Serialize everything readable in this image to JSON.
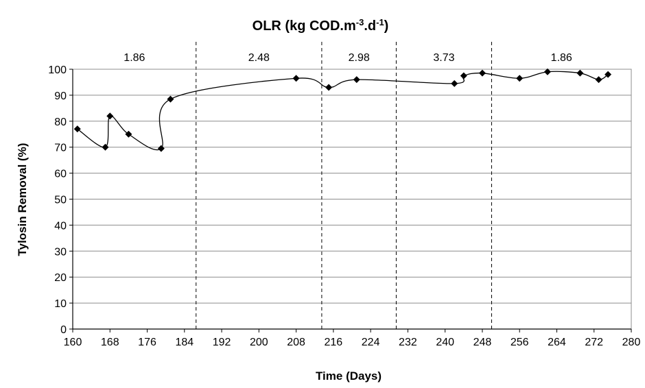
{
  "chart_data": {
    "type": "line",
    "title": {
      "main": "OLR (kg COD.m",
      "sup1": "-3",
      "mid": ".d",
      "sup2": "-1",
      "end": ")"
    },
    "xlabel": "Time (Days)",
    "ylabel": "Tylosin Removal (%)",
    "xlim": [
      160,
      280
    ],
    "ylim": [
      0,
      100
    ],
    "xticks": [
      160,
      168,
      176,
      184,
      192,
      200,
      208,
      216,
      224,
      232,
      240,
      248,
      256,
      264,
      272,
      280
    ],
    "yticks": [
      0,
      10,
      20,
      30,
      40,
      50,
      60,
      70,
      80,
      90,
      100
    ],
    "grid": "horizontal",
    "series": [
      {
        "x": [
          161,
          167,
          168,
          172,
          179,
          181,
          208,
          215,
          221,
          242,
          244,
          248,
          256,
          262,
          269,
          273,
          275
        ],
        "values": [
          77,
          70,
          82,
          75,
          69.5,
          88.5,
          96.5,
          93,
          96,
          94.5,
          97.5,
          98.5,
          96.5,
          99,
          98.5,
          96,
          98
        ]
      }
    ],
    "phase_boundaries": [
      186.5,
      213.5,
      229.5,
      250
    ],
    "phases": [
      {
        "label": "1.86",
        "start": 160,
        "end": 186.5
      },
      {
        "label": "2.48",
        "start": 186.5,
        "end": 213.5
      },
      {
        "label": "2.98",
        "start": 213.5,
        "end": 229.5
      },
      {
        "label": "3.73",
        "start": 229.5,
        "end": 250
      },
      {
        "label": "1.86",
        "start": 250,
        "end": 280
      }
    ],
    "colors": {
      "line": "#000000",
      "marker": "#000000",
      "grid": "#8c8c8c",
      "plot_border": "#8c8c8c"
    }
  }
}
